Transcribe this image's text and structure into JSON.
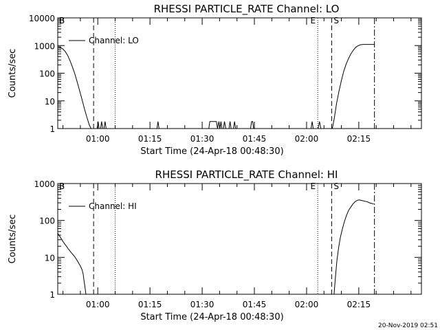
{
  "footer_timestamp": "20-Nov-2019 02:51",
  "chart_data": [
    {
      "type": "line",
      "title": "RHESSI PARTICLE_RATE Channel: LO",
      "xlabel": "Start Time (24-Apr-18 00:48:30)",
      "ylabel": "Counts/sec",
      "yscale": "log",
      "ylim": [
        1,
        10000
      ],
      "xlim_minutes": [
        0,
        104.5
      ],
      "x_tick_labels": [
        "01:00",
        "01:15",
        "01:30",
        "01:45",
        "02:00",
        "02:15"
      ],
      "x_tick_minutes": [
        11.5,
        26.5,
        41.5,
        56.5,
        71.5,
        86.5
      ],
      "y_tick_labels": [
        "1",
        "10",
        "100",
        "1000",
        "10000"
      ],
      "y_tick_values": [
        1,
        10,
        100,
        1000,
        10000
      ],
      "legend": {
        "entries": [
          "Channel: LO"
        ],
        "position": "top-left"
      },
      "event_markers": [
        {
          "label": "B",
          "minute": 0.2,
          "style": "none"
        },
        {
          "label": "",
          "minute": 10.3,
          "style": "dashed"
        },
        {
          "label": "",
          "minute": 16.5,
          "style": "dotted"
        },
        {
          "label": "E",
          "minute": 74.7,
          "style": "dotted"
        },
        {
          "label": "S",
          "minute": 78.7,
          "style": "dashed"
        },
        {
          "label": "",
          "minute": 91.0,
          "style": "dashdot"
        }
      ],
      "series": [
        {
          "name": "Channel: LO",
          "x": [
            0,
            0.7,
            1.4,
            2.1,
            2.8,
            3.5,
            4.2,
            4.9,
            5.6,
            6.3,
            7.0,
            7.7,
            8.4,
            9.1,
            9.6,
            10.1,
            10.5,
            11.3,
            11.6,
            11.9,
            12.3,
            12.6,
            12.9,
            13.3,
            13.6,
            13.9,
            28.5,
            28.8,
            29.1,
            43.4,
            43.7,
            44.0,
            44.3,
            45.6,
            45.9,
            46.3,
            46.6,
            46.9,
            47.2,
            47.6,
            47.9,
            48.3,
            49.2,
            49.5,
            49.8,
            50.5,
            50.8,
            51.1,
            55.4,
            55.7,
            56.0,
            56.3,
            72.8,
            73.1,
            73.4,
            74.8,
            75.2,
            75.6,
            78.9,
            79.5,
            80.1,
            80.8,
            81.5,
            82.2,
            82.9,
            83.6,
            84.3,
            85.0,
            85.6,
            86.2,
            86.8,
            87.3,
            87.8,
            88.3,
            88.8,
            89.4,
            90.0,
            90.6,
            91.0
          ],
          "y": [
            900,
            860,
            760,
            620,
            450,
            290,
            170,
            95,
            48,
            23,
            11,
            5,
            2.5,
            1.3,
            1,
            1,
            1,
            1,
            1.8,
            1,
            1,
            1.8,
            1,
            1,
            1.8,
            1,
            1,
            1.8,
            1,
            1,
            1.8,
            1.8,
            1.8,
            1.8,
            1,
            1.8,
            1,
            1.8,
            1,
            1,
            1.8,
            1,
            1,
            1.8,
            1,
            1,
            1.8,
            1,
            1,
            1.8,
            1.8,
            1,
            1,
            1.8,
            1,
            1,
            1.8,
            1,
            1,
            2.5,
            8,
            22,
            55,
            120,
            220,
            350,
            520,
            700,
            860,
            970,
            1050,
            1080,
            1100,
            1100,
            1100,
            1100,
            1100,
            1100,
            1100
          ]
        }
      ]
    },
    {
      "type": "line",
      "title": "RHESSI PARTICLE_RATE Channel: HI",
      "xlabel": "Start Time (24-Apr-18 00:48:30)",
      "ylabel": "Counts/sec",
      "yscale": "log",
      "ylim": [
        1,
        1000
      ],
      "xlim_minutes": [
        0,
        104.5
      ],
      "x_tick_labels": [
        "01:00",
        "01:15",
        "01:30",
        "01:45",
        "02:00",
        "02:15"
      ],
      "x_tick_minutes": [
        11.5,
        26.5,
        41.5,
        56.5,
        71.5,
        86.5
      ],
      "y_tick_labels": [
        "1",
        "10",
        "100",
        "1000"
      ],
      "y_tick_values": [
        1,
        10,
        100,
        1000
      ],
      "legend": {
        "entries": [
          "Channel: HI"
        ],
        "position": "top-left"
      },
      "event_markers": [
        {
          "label": "B",
          "minute": 0.2,
          "style": "none"
        },
        {
          "label": "",
          "minute": 10.3,
          "style": "dashed"
        },
        {
          "label": "",
          "minute": 16.5,
          "style": "dotted"
        },
        {
          "label": "E",
          "minute": 74.7,
          "style": "dotted"
        },
        {
          "label": "S",
          "minute": 78.7,
          "style": "dashed"
        },
        {
          "label": "",
          "minute": 91.0,
          "style": "dashdot"
        }
      ],
      "series": [
        {
          "name": "Channel: HI",
          "x": [
            0,
            0.5,
            1.0,
            1.5,
            2.0,
            2.5,
            3.0,
            3.5,
            4.0,
            4.5,
            5.0,
            5.5,
            6.0,
            6.5,
            7.0,
            7.3,
            7.5,
            7.8,
            8.1,
            79.4,
            79.8,
            80.2,
            80.7,
            81.2,
            81.8,
            82.4,
            83.0,
            83.6,
            84.2,
            84.8,
            85.4,
            86.0,
            86.6,
            87.2,
            87.8,
            88.4,
            89.0,
            89.6,
            90.2,
            90.8
          ],
          "y": [
            45,
            38,
            32,
            27,
            23,
            20,
            17,
            15,
            13,
            11.5,
            10,
            8.5,
            7,
            5.8,
            4.6,
            3.5,
            2.5,
            1.6,
            1,
            1,
            3,
            8,
            18,
            35,
            60,
            95,
            140,
            190,
            230,
            280,
            320,
            350,
            360,
            350,
            340,
            330,
            320,
            300,
            290,
            280
          ]
        }
      ]
    }
  ]
}
